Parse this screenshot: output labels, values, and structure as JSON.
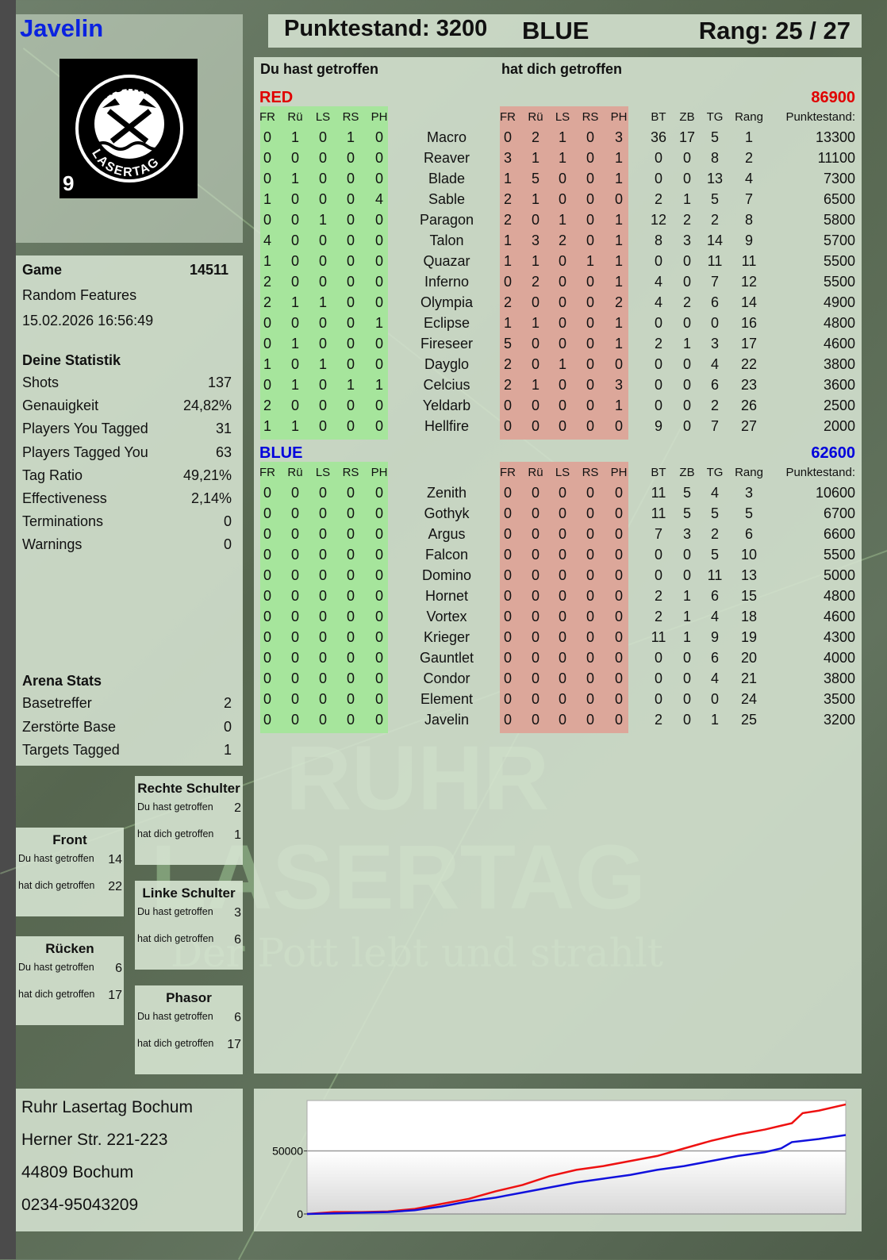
{
  "player": {
    "name": "Javelin",
    "score_label": "Punktestand: 3200",
    "team": "BLUE",
    "rank_label": "Rang: 25 / 27"
  },
  "logo": {
    "top_text": "RUHR",
    "bottom_text": "LASERTAG",
    "number": "9"
  },
  "watermark": {
    "line1": "RUHR",
    "line2": "LASERTAG",
    "slogan": "Der Pott lebt und strahlt"
  },
  "game": {
    "label": "Game",
    "id": "14511",
    "mode": "Random Features",
    "datetime": "15.02.2026 16:56:49"
  },
  "stats": {
    "title": "Deine Statistik",
    "rows": [
      {
        "label": "Shots",
        "value": "137"
      },
      {
        "label": "Genauigkeit",
        "value": "24,82%"
      },
      {
        "label": "Players You Tagged",
        "value": "31"
      },
      {
        "label": "Players Tagged You",
        "value": "63"
      },
      {
        "label": "Tag Ratio",
        "value": "49,21%"
      },
      {
        "label": "Effectiveness",
        "value": "2,14%"
      },
      {
        "label": "Terminations",
        "value": "0"
      },
      {
        "label": "Warnings",
        "value": "0"
      }
    ]
  },
  "arena": {
    "title": "Arena Stats",
    "rows": [
      {
        "label": "Basetreffer",
        "value": "2"
      },
      {
        "label": "Zerstörte Base",
        "value": "0"
      },
      {
        "label": "Targets Tagged",
        "value": "1"
      }
    ]
  },
  "hits": {
    "rechte_schulter": {
      "title": "Rechte Schulter",
      "du": "2",
      "dich": "1"
    },
    "front": {
      "title": "Front",
      "du": "14",
      "dich": "22"
    },
    "linke_schulter": {
      "title": "Linke Schulter",
      "du": "3",
      "dich": "6"
    },
    "ruecken": {
      "title": "Rücken",
      "du": "6",
      "dich": "17"
    },
    "phasor": {
      "title": "Phasor",
      "du": "6",
      "dich": "17"
    },
    "du_label": "Du hast getroffen",
    "dich_label": "hat dich getroffen"
  },
  "main": {
    "du_hast": "Du hast getroffen",
    "hat_dich": "hat dich getroffen",
    "hit_cols": [
      "FR",
      "Rü",
      "LS",
      "RS",
      "PH"
    ],
    "stat_cols": [
      "BT",
      "ZB",
      "TG",
      "Rang"
    ],
    "score_col": "Punktestand:"
  },
  "teams": [
    {
      "name": "RED",
      "total": "86900",
      "color": "#e00000",
      "players": [
        {
          "name": "Macro",
          "du": [
            0,
            1,
            0,
            1,
            0
          ],
          "dich": [
            0,
            2,
            1,
            0,
            3
          ],
          "bt": 36,
          "zb": 17,
          "tg": 5,
          "rang": 1,
          "score": 13300
        },
        {
          "name": "Reaver",
          "du": [
            0,
            0,
            0,
            0,
            0
          ],
          "dich": [
            3,
            1,
            1,
            0,
            1
          ],
          "bt": 0,
          "zb": 0,
          "tg": 8,
          "rang": 2,
          "score": 11100
        },
        {
          "name": "Blade",
          "du": [
            0,
            1,
            0,
            0,
            0
          ],
          "dich": [
            1,
            5,
            0,
            0,
            1
          ],
          "bt": 0,
          "zb": 0,
          "tg": 13,
          "rang": 4,
          "score": 7300
        },
        {
          "name": "Sable",
          "du": [
            1,
            0,
            0,
            0,
            4
          ],
          "dich": [
            2,
            1,
            0,
            0,
            0
          ],
          "bt": 2,
          "zb": 1,
          "tg": 5,
          "rang": 7,
          "score": 6500
        },
        {
          "name": "Paragon",
          "du": [
            0,
            0,
            1,
            0,
            0
          ],
          "dich": [
            2,
            0,
            1,
            0,
            1
          ],
          "bt": 12,
          "zb": 2,
          "tg": 2,
          "rang": 8,
          "score": 5800
        },
        {
          "name": "Talon",
          "du": [
            4,
            0,
            0,
            0,
            0
          ],
          "dich": [
            1,
            3,
            2,
            0,
            1
          ],
          "bt": 8,
          "zb": 3,
          "tg": 14,
          "rang": 9,
          "score": 5700
        },
        {
          "name": "Quazar",
          "du": [
            1,
            0,
            0,
            0,
            0
          ],
          "dich": [
            1,
            1,
            0,
            1,
            1
          ],
          "bt": 0,
          "zb": 0,
          "tg": 11,
          "rang": 11,
          "score": 5500
        },
        {
          "name": "Inferno",
          "du": [
            2,
            0,
            0,
            0,
            0
          ],
          "dich": [
            0,
            2,
            0,
            0,
            1
          ],
          "bt": 4,
          "zb": 0,
          "tg": 7,
          "rang": 12,
          "score": 5500
        },
        {
          "name": "Olympia",
          "du": [
            2,
            1,
            1,
            0,
            0
          ],
          "dich": [
            2,
            0,
            0,
            0,
            2
          ],
          "bt": 4,
          "zb": 2,
          "tg": 6,
          "rang": 14,
          "score": 4900
        },
        {
          "name": "Eclipse",
          "du": [
            0,
            0,
            0,
            0,
            1
          ],
          "dich": [
            1,
            1,
            0,
            0,
            1
          ],
          "bt": 0,
          "zb": 0,
          "tg": 0,
          "rang": 16,
          "score": 4800
        },
        {
          "name": "Fireseer",
          "du": [
            0,
            1,
            0,
            0,
            0
          ],
          "dich": [
            5,
            0,
            0,
            0,
            1
          ],
          "bt": 2,
          "zb": 1,
          "tg": 3,
          "rang": 17,
          "score": 4600
        },
        {
          "name": "Dayglo",
          "du": [
            1,
            0,
            1,
            0,
            0
          ],
          "dich": [
            2,
            0,
            1,
            0,
            0
          ],
          "bt": 0,
          "zb": 0,
          "tg": 4,
          "rang": 22,
          "score": 3800
        },
        {
          "name": "Celcius",
          "du": [
            0,
            1,
            0,
            1,
            1
          ],
          "dich": [
            2,
            1,
            0,
            0,
            3
          ],
          "bt": 0,
          "zb": 0,
          "tg": 6,
          "rang": 23,
          "score": 3600
        },
        {
          "name": "Yeldarb",
          "du": [
            2,
            0,
            0,
            0,
            0
          ],
          "dich": [
            0,
            0,
            0,
            0,
            1
          ],
          "bt": 0,
          "zb": 0,
          "tg": 2,
          "rang": 26,
          "score": 2500
        },
        {
          "name": "Hellfire",
          "du": [
            1,
            1,
            0,
            0,
            0
          ],
          "dich": [
            0,
            0,
            0,
            0,
            0
          ],
          "bt": 9,
          "zb": 0,
          "tg": 7,
          "rang": 27,
          "score": 2000
        }
      ]
    },
    {
      "name": "BLUE",
      "total": "62600",
      "color": "#0000dd",
      "players": [
        {
          "name": "Zenith",
          "du": [
            0,
            0,
            0,
            0,
            0
          ],
          "dich": [
            0,
            0,
            0,
            0,
            0
          ],
          "bt": 11,
          "zb": 5,
          "tg": 4,
          "rang": 3,
          "score": 10600
        },
        {
          "name": "Gothyk",
          "du": [
            0,
            0,
            0,
            0,
            0
          ],
          "dich": [
            0,
            0,
            0,
            0,
            0
          ],
          "bt": 11,
          "zb": 5,
          "tg": 5,
          "rang": 5,
          "score": 6700
        },
        {
          "name": "Argus",
          "du": [
            0,
            0,
            0,
            0,
            0
          ],
          "dich": [
            0,
            0,
            0,
            0,
            0
          ],
          "bt": 7,
          "zb": 3,
          "tg": 2,
          "rang": 6,
          "score": 6600
        },
        {
          "name": "Falcon",
          "du": [
            0,
            0,
            0,
            0,
            0
          ],
          "dich": [
            0,
            0,
            0,
            0,
            0
          ],
          "bt": 0,
          "zb": 0,
          "tg": 5,
          "rang": 10,
          "score": 5500
        },
        {
          "name": "Domino",
          "du": [
            0,
            0,
            0,
            0,
            0
          ],
          "dich": [
            0,
            0,
            0,
            0,
            0
          ],
          "bt": 0,
          "zb": 0,
          "tg": 11,
          "rang": 13,
          "score": 5000
        },
        {
          "name": "Hornet",
          "du": [
            0,
            0,
            0,
            0,
            0
          ],
          "dich": [
            0,
            0,
            0,
            0,
            0
          ],
          "bt": 2,
          "zb": 1,
          "tg": 6,
          "rang": 15,
          "score": 4800
        },
        {
          "name": "Vortex",
          "du": [
            0,
            0,
            0,
            0,
            0
          ],
          "dich": [
            0,
            0,
            0,
            0,
            0
          ],
          "bt": 2,
          "zb": 1,
          "tg": 4,
          "rang": 18,
          "score": 4600
        },
        {
          "name": "Krieger",
          "du": [
            0,
            0,
            0,
            0,
            0
          ],
          "dich": [
            0,
            0,
            0,
            0,
            0
          ],
          "bt": 11,
          "zb": 1,
          "tg": 9,
          "rang": 19,
          "score": 4300
        },
        {
          "name": "Gauntlet",
          "du": [
            0,
            0,
            0,
            0,
            0
          ],
          "dich": [
            0,
            0,
            0,
            0,
            0
          ],
          "bt": 0,
          "zb": 0,
          "tg": 6,
          "rang": 20,
          "score": 4000
        },
        {
          "name": "Condor",
          "du": [
            0,
            0,
            0,
            0,
            0
          ],
          "dich": [
            0,
            0,
            0,
            0,
            0
          ],
          "bt": 0,
          "zb": 0,
          "tg": 4,
          "rang": 21,
          "score": 3800
        },
        {
          "name": "Element",
          "du": [
            0,
            0,
            0,
            0,
            0
          ],
          "dich": [
            0,
            0,
            0,
            0,
            0
          ],
          "bt": 0,
          "zb": 0,
          "tg": 0,
          "rang": 24,
          "score": 3500
        },
        {
          "name": "Javelin",
          "du": [
            0,
            0,
            0,
            0,
            0
          ],
          "dich": [
            0,
            0,
            0,
            0,
            0
          ],
          "bt": 2,
          "zb": 0,
          "tg": 1,
          "rang": 25,
          "score": 3200
        }
      ]
    }
  ],
  "address": {
    "lines": [
      "Ruhr Lasertag Bochum",
      "Herner Str. 221-223",
      "44809 Bochum",
      "0234-95043209"
    ]
  },
  "chart_data": {
    "type": "line",
    "ylim": [
      0,
      90000
    ],
    "yticks": [
      "0",
      "50000"
    ],
    "grid": true,
    "x": [
      0,
      0.05,
      0.1,
      0.15,
      0.2,
      0.25,
      0.3,
      0.35,
      0.4,
      0.45,
      0.5,
      0.55,
      0.6,
      0.65,
      0.7,
      0.75,
      0.8,
      0.85,
      0.88,
      0.9,
      0.92,
      0.95,
      1.0
    ],
    "series": [
      {
        "color": "#ee1111",
        "values": [
          0,
          1500,
          1500,
          2000,
          4000,
          8000,
          12000,
          18000,
          23000,
          30000,
          35000,
          38000,
          42000,
          46000,
          52000,
          58000,
          63000,
          67000,
          70000,
          72000,
          80000,
          82000,
          86900
        ]
      },
      {
        "color": "#1111dd",
        "values": [
          0,
          500,
          1000,
          1500,
          3000,
          6000,
          10000,
          13000,
          17000,
          21000,
          25000,
          28000,
          31000,
          35000,
          38000,
          42000,
          46000,
          49000,
          52000,
          57000,
          58000,
          59500,
          62600
        ]
      }
    ]
  }
}
